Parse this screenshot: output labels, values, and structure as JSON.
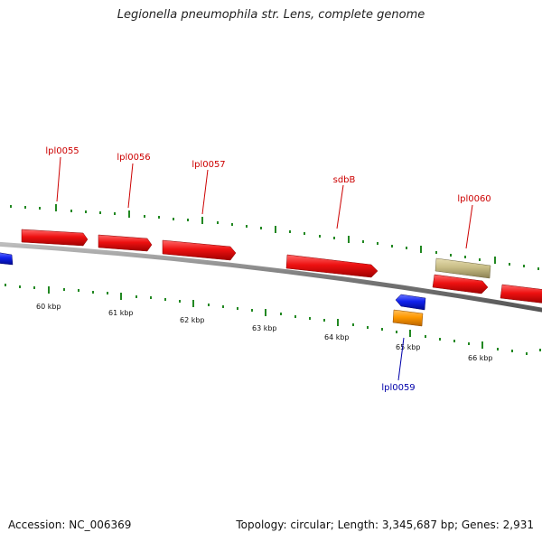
{
  "title": "Legionella pneumophila str. Lens, complete genome",
  "footer": {
    "accession": "Accession: NC_006369",
    "summary": "Topology: circular; Length: 3,345,687 bp; Genes: 2,931"
  },
  "colors": {
    "forward_gene": "#ee1111",
    "reverse_gene": "#1122ee",
    "orange_feature": "#ff9900",
    "khaki_feature": "#c8bd86",
    "backbone": "#8a8a8a",
    "tick": "#228822",
    "forward_label": "#cc0000",
    "reverse_label": "#0000aa"
  },
  "axis_labels": [
    "60 kbp",
    "61 kbp",
    "62 kbp",
    "63 kbp",
    "64 kbp",
    "65 kbp",
    "66 kbp"
  ],
  "gene_labels": [
    {
      "id": "lpl0055",
      "text": "lpl0055",
      "strand": "forward"
    },
    {
      "id": "lpl0056",
      "text": "lpl0056",
      "strand": "forward"
    },
    {
      "id": "lpl0057",
      "text": "lpl0057",
      "strand": "forward"
    },
    {
      "id": "sdbB",
      "text": "sdbB",
      "strand": "forward"
    },
    {
      "id": "lpl0060",
      "text": "lpl0060",
      "strand": "forward"
    },
    {
      "id": "lpl0059",
      "text": "lpl0059",
      "strand": "reverse"
    }
  ]
}
